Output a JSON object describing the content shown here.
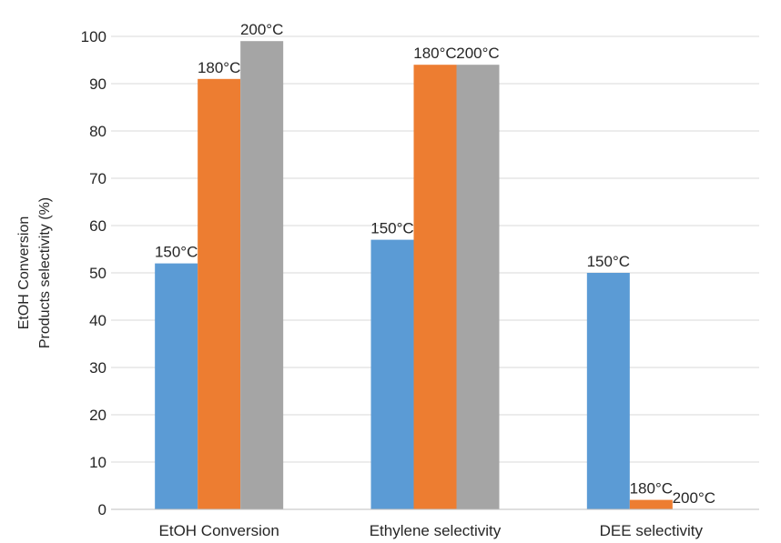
{
  "chart_data": {
    "type": "bar",
    "categories": [
      "EtOH Conversion",
      "Ethylene selectivity",
      "DEE selectivity"
    ],
    "series": [
      {
        "name": "150°C",
        "color": "#5b9bd5",
        "values": [
          52,
          57,
          50
        ],
        "labels": [
          "150°C",
          "150°C",
          "150°C"
        ]
      },
      {
        "name": "180°C",
        "color": "#ed7d31",
        "values": [
          91,
          94,
          2
        ],
        "labels": [
          "180°C",
          "180°C",
          "180°C"
        ]
      },
      {
        "name": "200°C",
        "color": "#a5a5a5",
        "values": [
          99,
          94,
          0
        ],
        "labels": [
          "200°C",
          "200°C",
          "200°C"
        ]
      }
    ],
    "ylabel_lines": [
      "EtOH Conversion",
      "Products selectivity (%)"
    ],
    "ylim": [
      0,
      100
    ],
    "yticks": [
      0,
      10,
      20,
      30,
      40,
      50,
      60,
      70,
      80,
      90,
      100
    ],
    "grid": true,
    "legend": "none (data labels on bars)"
  }
}
